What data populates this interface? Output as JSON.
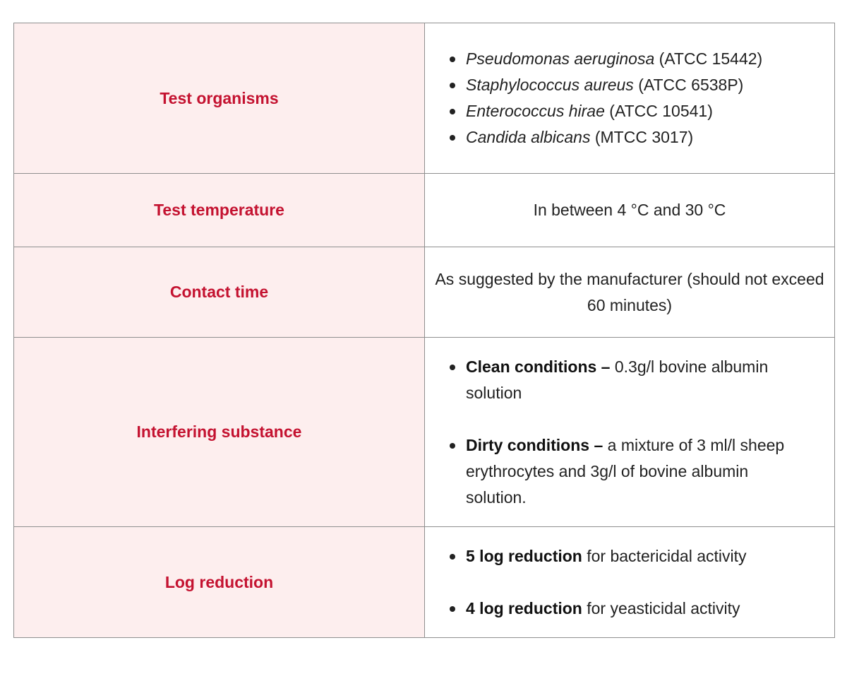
{
  "rows": {
    "organisms": {
      "label": "Test organisms",
      "items": [
        {
          "name": "Pseudomonas aeruginosa",
          "strain": " (ATCC 15442)"
        },
        {
          "name": "Staphylococcus aureus",
          "strain": " (ATCC 6538P)"
        },
        {
          "name": "Enterococcus hirae",
          "strain": " (ATCC 10541)"
        },
        {
          "name": "Candida albicans",
          "strain": " (MTCC 3017)"
        }
      ]
    },
    "temperature": {
      "label": "Test temperature",
      "value": "In between 4 °C and 30 °C"
    },
    "contact": {
      "label": "Contact time",
      "value": "As suggested by the manufacturer (should not exceed 60 minutes)"
    },
    "interfering": {
      "label": "Interfering substance",
      "items": [
        {
          "term": "Clean conditions –",
          "desc": " 0.3g/l bovine albumin solution"
        },
        {
          "term": "Dirty conditions –",
          "desc": " a mixture of 3 ml/l sheep erythrocytes and 3g/l of bovine albumin solution."
        }
      ]
    },
    "log": {
      "label": "Log reduction",
      "items": [
        {
          "term": "5 log reduction",
          "desc": " for bactericidal activity"
        },
        {
          "term": "4 log reduction",
          "desc": " for yeasticidal activity"
        }
      ]
    }
  },
  "colors": {
    "label_text": "#c41230",
    "label_bg": "#fdeeee",
    "border": "#8f8f8f"
  }
}
